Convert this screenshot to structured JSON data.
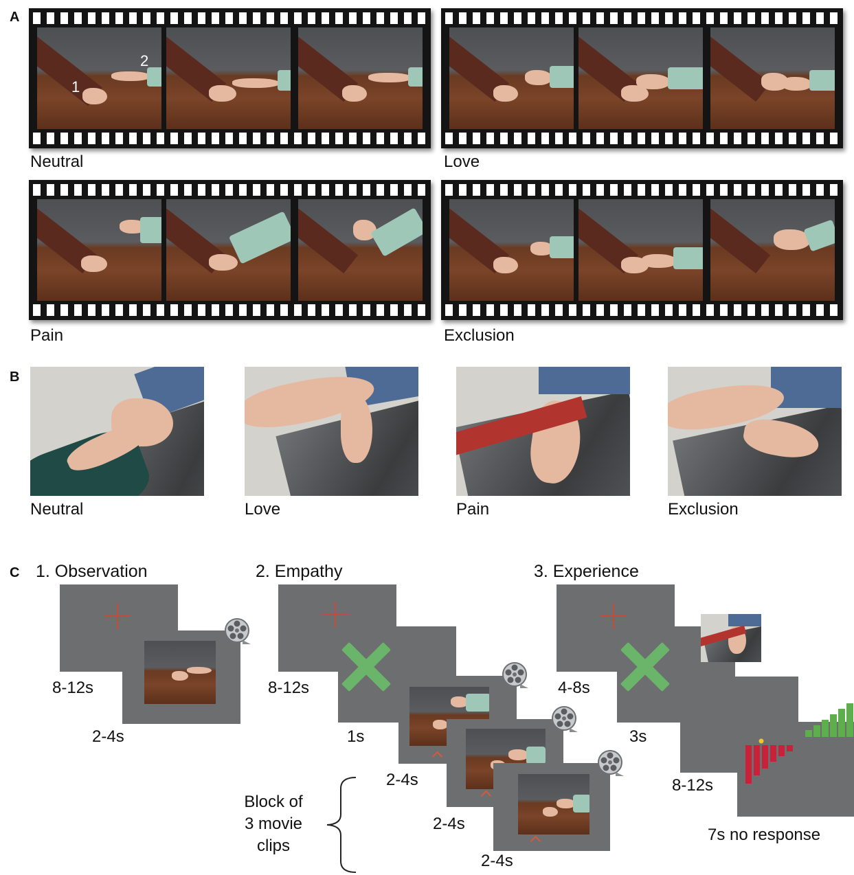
{
  "panel_labels": {
    "a": "A",
    "b": "B",
    "c": "C"
  },
  "panel_a": {
    "strips": [
      {
        "caption": "Neutral"
      },
      {
        "caption": "Love"
      },
      {
        "caption": "Pain"
      },
      {
        "caption": "Exclusion"
      }
    ],
    "markers": {
      "one": "1",
      "two": "2"
    }
  },
  "panel_b": {
    "photos": [
      {
        "caption": "Neutral"
      },
      {
        "caption": "Love"
      },
      {
        "caption": "Pain"
      },
      {
        "caption": "Exclusion"
      }
    ]
  },
  "panel_c": {
    "phases": [
      {
        "title": "1. Observation",
        "durations": [
          "8-12s",
          "2-4s"
        ]
      },
      {
        "title": "2. Empathy",
        "durations": [
          "8-12s",
          "1s",
          "2-4s",
          "2-4s",
          "2-4s"
        ]
      },
      {
        "title": "3. Experience",
        "durations": [
          "4-8s",
          "3s",
          "8-12s"
        ]
      }
    ],
    "block_label": [
      "Block of",
      "3 movie",
      "clips"
    ],
    "no_response_label": "7s no response",
    "colors": {
      "screen": "#6d6e6f",
      "fixation": "#c24b3c",
      "cue": "#6ab56a",
      "rating_red": "#c8213a",
      "rating_green": "#5fae4e",
      "cursor": "#f2c230"
    }
  }
}
